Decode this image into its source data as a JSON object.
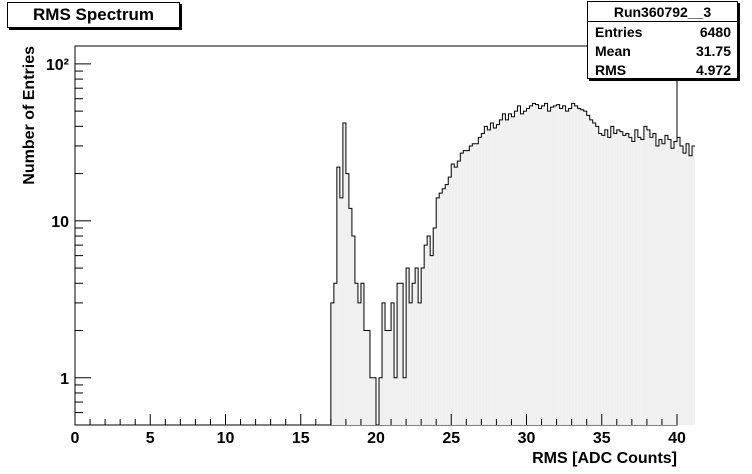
{
  "title": "RMS Spectrum",
  "stats": {
    "name": "Run360792__3",
    "rows": [
      {
        "label": "Entries",
        "value": "6480"
      },
      {
        "label": "Mean",
        "value": "31.75"
      },
      {
        "label": "RMS",
        "value": "4.972"
      }
    ]
  },
  "chart_data": {
    "type": "bar",
    "title": "RMS Spectrum",
    "xlabel": "RMS [ADC Counts]",
    "ylabel": "Number of Entries",
    "xlim": [
      0,
      40
    ],
    "ylim": [
      0.5,
      130
    ],
    "yscale": "log",
    "xticks": [
      0,
      5,
      10,
      15,
      20,
      25,
      30,
      35,
      40
    ],
    "xtick_labels": [
      "0",
      "5",
      "10",
      "15",
      "20",
      "25",
      "30",
      "35",
      "40"
    ],
    "yticks": [
      1,
      10,
      100
    ],
    "ytick_labels": [
      "1",
      "10",
      "10²"
    ],
    "grid": false,
    "bin_width": 0.2,
    "bin_start": 17.0,
    "values": [
      3,
      4,
      22,
      14,
      42,
      20,
      12,
      8,
      4,
      3,
      4,
      2,
      2,
      1,
      1,
      0.5,
      1,
      3,
      2,
      2,
      3,
      1,
      4,
      4,
      1,
      5,
      3,
      4,
      5,
      3,
      5,
      7,
      8,
      6,
      9,
      14,
      15,
      16,
      17,
      19,
      23,
      22,
      24,
      27,
      28,
      28,
      30,
      31,
      31,
      34,
      36,
      40,
      38,
      42,
      39,
      41,
      44,
      48,
      44,
      48,
      46,
      50,
      54,
      48,
      50,
      52,
      54,
      56,
      55,
      52,
      54,
      56,
      50,
      53,
      54,
      55,
      52,
      54,
      50,
      52,
      56,
      54,
      52,
      51,
      50,
      47,
      44,
      42,
      40,
      36,
      35,
      38,
      34,
      40,
      36,
      38,
      37,
      35,
      36,
      34,
      32,
      38,
      34,
      33,
      40,
      38,
      34,
      36,
      30,
      33,
      31,
      35,
      33,
      29,
      32,
      34,
      30,
      27,
      31,
      26,
      30
    ]
  }
}
